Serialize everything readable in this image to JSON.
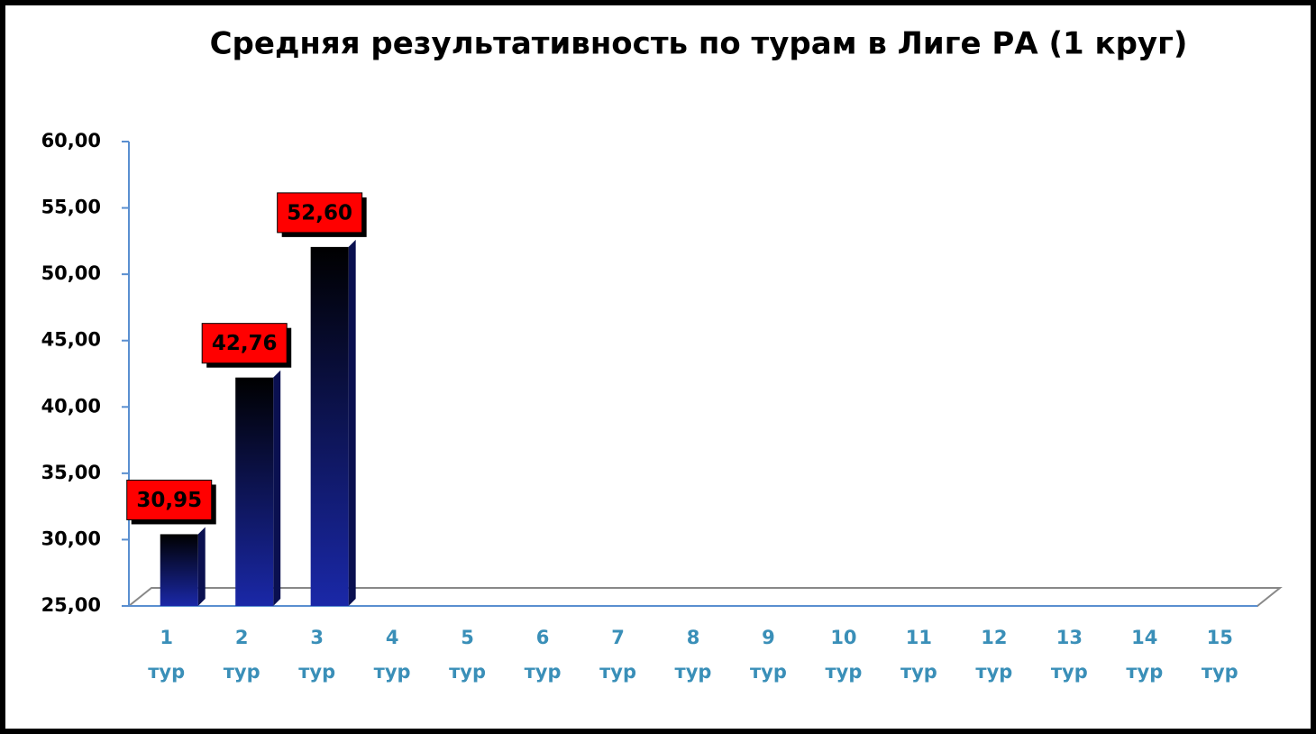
{
  "chart_data": {
    "type": "bar",
    "title": "Средняя результативность по турам в Лиге РА (1 круг)",
    "categories": [
      "1 тур",
      "2 тур",
      "3 тур",
      "4 тур",
      "5 тур",
      "6 тур",
      "7 тур",
      "8 тур",
      "9 тур",
      "10 тур",
      "11 тур",
      "12 тур",
      "13 тур",
      "14 тур",
      "15 тур"
    ],
    "values": [
      30.95,
      42.76,
      52.6,
      null,
      null,
      null,
      null,
      null,
      null,
      null,
      null,
      null,
      null,
      null,
      null
    ],
    "value_labels": [
      "30,95",
      "42,76",
      "52,60",
      null,
      null,
      null,
      null,
      null,
      null,
      null,
      null,
      null,
      null,
      null,
      null
    ],
    "color": "#1a28a8",
    "label_color": "#ff0000",
    "ylim": [
      25,
      60
    ],
    "yticks": [
      {
        "value": 25,
        "label": "25,00"
      },
      {
        "value": 30,
        "label": "30,00"
      },
      {
        "value": 35,
        "label": "35,00"
      },
      {
        "value": 40,
        "label": "40,00"
      },
      {
        "value": 45,
        "label": "45,00"
      },
      {
        "value": 50,
        "label": "50,00"
      },
      {
        "value": 55,
        "label": "55,00"
      },
      {
        "value": 60,
        "label": "60,00"
      }
    ],
    "grid": false
  }
}
